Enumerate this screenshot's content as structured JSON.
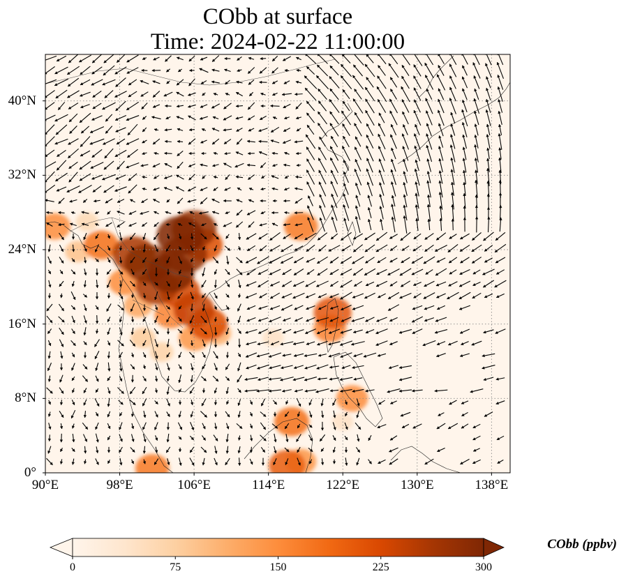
{
  "title": {
    "line1": "CObb at surface",
    "line2": "Time: 2024-02-22 11:00:00"
  },
  "map": {
    "variable": "CObb",
    "level": "surface",
    "time": "2024-02-22 11:00:00",
    "extent": {
      "lon_min": 90,
      "lon_max": 140,
      "lat_min": 0,
      "lat_max": 45
    },
    "lat_ticks": [
      {
        "value": 0,
        "label": "0°"
      },
      {
        "value": 8,
        "label": "8°N"
      },
      {
        "value": 16,
        "label": "16°N"
      },
      {
        "value": 24,
        "label": "24°N"
      },
      {
        "value": 32,
        "label": "32°N"
      },
      {
        "value": 40,
        "label": "40°N"
      }
    ],
    "lon_ticks": [
      {
        "value": 90,
        "label": "90°E"
      },
      {
        "value": 98,
        "label": "98°E"
      },
      {
        "value": 106,
        "label": "106°E"
      },
      {
        "value": 114,
        "label": "114°E"
      },
      {
        "value": 122,
        "label": "122°E"
      },
      {
        "value": 130,
        "label": "130°E"
      },
      {
        "value": 138,
        "label": "138°E"
      }
    ],
    "gridlines": true,
    "wind_vectors": true,
    "hotspots": [
      {
        "lon": 103.5,
        "lat": 21.5,
        "value": 300
      },
      {
        "lon": 101.0,
        "lat": 22.5,
        "value": 290
      },
      {
        "lon": 99.5,
        "lat": 23.5,
        "value": 260
      },
      {
        "lon": 105.0,
        "lat": 23.5,
        "value": 280
      },
      {
        "lon": 104.5,
        "lat": 25.5,
        "value": 300
      },
      {
        "lon": 106.0,
        "lat": 26.2,
        "value": 280
      },
      {
        "lon": 107.0,
        "lat": 24.5,
        "value": 220
      },
      {
        "lon": 102.0,
        "lat": 20.0,
        "value": 260
      },
      {
        "lon": 104.5,
        "lat": 19.5,
        "value": 230
      },
      {
        "lon": 106.0,
        "lat": 17.5,
        "value": 240
      },
      {
        "lon": 107.5,
        "lat": 16.0,
        "value": 220
      },
      {
        "lon": 103.5,
        "lat": 17.0,
        "value": 160
      },
      {
        "lon": 106.0,
        "lat": 14.5,
        "value": 140
      },
      {
        "lon": 108.5,
        "lat": 15.0,
        "value": 110
      },
      {
        "lon": 100.0,
        "lat": 18.0,
        "value": 120
      },
      {
        "lon": 98.5,
        "lat": 20.5,
        "value": 150
      },
      {
        "lon": 96.0,
        "lat": 24.5,
        "value": 180
      },
      {
        "lon": 93.5,
        "lat": 23.8,
        "value": 90
      },
      {
        "lon": 91.0,
        "lat": 26.5,
        "value": 150
      },
      {
        "lon": 94.5,
        "lat": 27.0,
        "value": 60
      },
      {
        "lon": 100.5,
        "lat": 14.5,
        "value": 80
      },
      {
        "lon": 102.5,
        "lat": 13.0,
        "value": 70
      },
      {
        "lon": 117.5,
        "lat": 26.5,
        "value": 170
      },
      {
        "lon": 120.9,
        "lat": 17.2,
        "value": 210
      },
      {
        "lon": 120.6,
        "lat": 15.5,
        "value": 160
      },
      {
        "lon": 116.5,
        "lat": 5.5,
        "value": 180
      },
      {
        "lon": 123.0,
        "lat": 8.0,
        "value": 150
      },
      {
        "lon": 101.5,
        "lat": 0.5,
        "value": 170
      },
      {
        "lon": 116.0,
        "lat": 0.8,
        "value": 200
      },
      {
        "lon": 117.5,
        "lat": 1.2,
        "value": 140
      },
      {
        "lon": 114.5,
        "lat": 14.5,
        "value": 45
      },
      {
        "lon": 122.0,
        "lat": 5.5,
        "value": 45
      }
    ]
  },
  "colorbar": {
    "label": "CObb (ppbv)",
    "min": 0,
    "max": 300,
    "ticks": [
      {
        "value": 0,
        "label": "0"
      },
      {
        "value": 75,
        "label": "75"
      },
      {
        "value": 150,
        "label": "150"
      },
      {
        "value": 225,
        "label": "225"
      },
      {
        "value": 300,
        "label": "300"
      }
    ],
    "extend": "both",
    "colormap": [
      "#fff5eb",
      "#fee6ce",
      "#fdd0a2",
      "#fdae6b",
      "#fd8d3c",
      "#f16913",
      "#d94801",
      "#a63603",
      "#7f2704"
    ]
  }
}
